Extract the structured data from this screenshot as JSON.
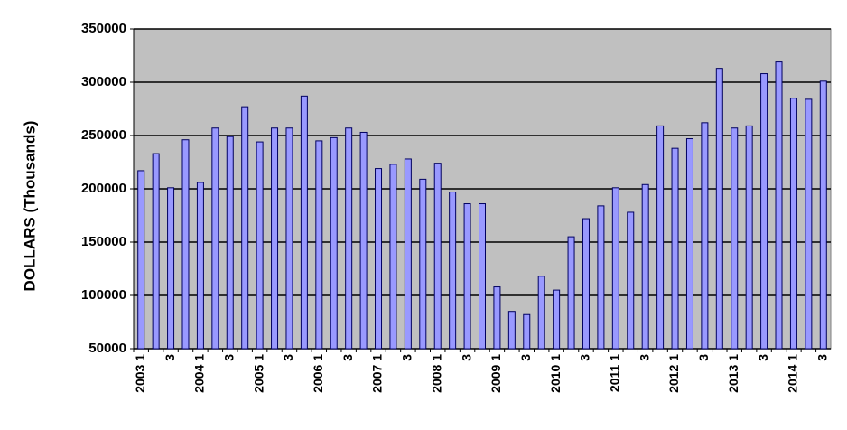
{
  "chart_data": {
    "type": "bar",
    "y_label": "DOLLARS  (Thousands)",
    "categories": [
      "2003 1",
      null,
      "3",
      null,
      "2004 1",
      null,
      "3",
      null,
      "2005 1",
      null,
      "3",
      null,
      "2006 1",
      null,
      "3",
      null,
      "2007 1",
      null,
      "3",
      null,
      "2008 1",
      null,
      "3",
      null,
      "2009 1",
      null,
      "3",
      null,
      "2010 1",
      null,
      "3",
      null,
      "2011 1",
      null,
      "3",
      null,
      "2012 1",
      null,
      "3",
      null,
      "2013 1",
      null,
      "3",
      null,
      "2014 1",
      null,
      "3"
    ],
    "values": [
      217000,
      233000,
      201000,
      246000,
      206000,
      257000,
      249000,
      277000,
      244000,
      257000,
      257000,
      287000,
      245000,
      248000,
      257000,
      253000,
      219000,
      223000,
      228000,
      209000,
      224000,
      197000,
      186000,
      186000,
      108000,
      85000,
      82000,
      118000,
      105000,
      155000,
      172000,
      184000,
      201000,
      178000,
      204000,
      259000,
      238000,
      247000,
      262000,
      313000,
      257000,
      259000,
      308000,
      319000,
      285000,
      284000,
      301000
    ],
    "color": "#9999ff",
    "ylim": [
      50000,
      350000
    ],
    "yticks": [
      50000,
      100000,
      150000,
      200000,
      250000,
      300000,
      350000
    ],
    "grid": true
  }
}
